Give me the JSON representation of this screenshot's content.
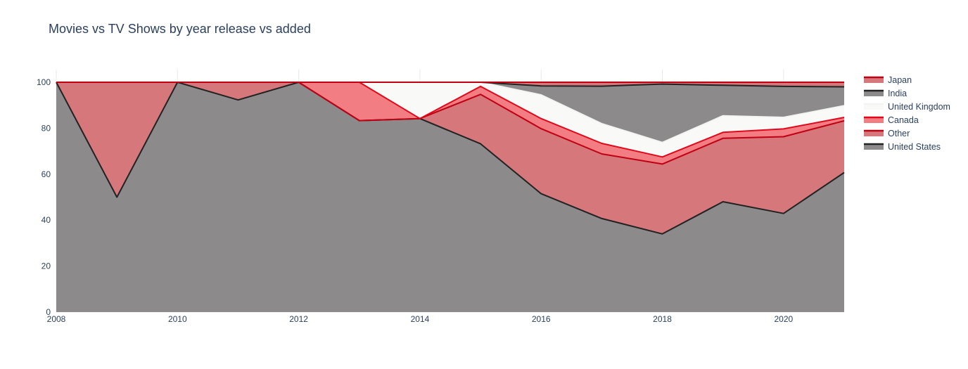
{
  "chart_data": {
    "type": "area",
    "title": "Movies vs TV Shows by year release vs added",
    "xlabel": "",
    "ylabel": "",
    "xlim": [
      2008,
      2021
    ],
    "ylim": [
      0,
      100
    ],
    "x_ticks": [
      "2008",
      "2010",
      "2012",
      "2014",
      "2016",
      "2018",
      "2020"
    ],
    "y_ticks": [
      "0",
      "20",
      "40",
      "60",
      "80",
      "100"
    ],
    "grid": true,
    "legend_position": "right",
    "stacking": "cumulative percent",
    "x": [
      2008,
      2009,
      2010,
      2011,
      2012,
      2013,
      2014,
      2015,
      2016,
      2017,
      2018,
      2019,
      2020,
      2021
    ],
    "series": [
      {
        "name": "United States",
        "fill": "#8c8a8b",
        "line": "#222222",
        "values": [
          100,
          50,
          100,
          92.3,
          100,
          83.3,
          84.2,
          73.2,
          51.5,
          40.7,
          34,
          48,
          42.9,
          60.7
        ]
      },
      {
        "name": "Other",
        "fill": "#d6777c",
        "line": "#c00012",
        "values": [
          0,
          50,
          0,
          7.7,
          0,
          0,
          0,
          21.5,
          28.3,
          28.1,
          30.4,
          27.6,
          33.4,
          22.5
        ]
      },
      {
        "name": "Canada",
        "fill": "#f27d83",
        "line": "#e0081a",
        "values": [
          0,
          0,
          0,
          0,
          0,
          16.7,
          0,
          3.5,
          4.4,
          4.6,
          3.1,
          2.6,
          3.4,
          1.5
        ]
      },
      {
        "name": "United Kingdom",
        "fill": "#f9f9f7",
        "line": "#f4f4f2",
        "values": [
          0,
          0,
          0,
          0,
          0,
          0,
          15.8,
          1.8,
          10.3,
          8.6,
          6.3,
          7.2,
          5,
          5.1
        ]
      },
      {
        "name": "India",
        "fill": "#8c8a8b",
        "line": "#222222",
        "values": [
          0,
          0,
          0,
          0,
          0,
          0,
          0,
          0,
          3.9,
          16.3,
          25.4,
          13.3,
          13.5,
          8.2
        ]
      },
      {
        "name": "Japan",
        "fill": "#d6777c",
        "line": "#c00012",
        "values": [
          0,
          0,
          0,
          0,
          0,
          0,
          0,
          0,
          1.6,
          1.7,
          0.8,
          1.3,
          1.8,
          2
        ]
      }
    ],
    "legend_order": [
      "Japan",
      "India",
      "United Kingdom",
      "Canada",
      "Other",
      "United States"
    ]
  }
}
